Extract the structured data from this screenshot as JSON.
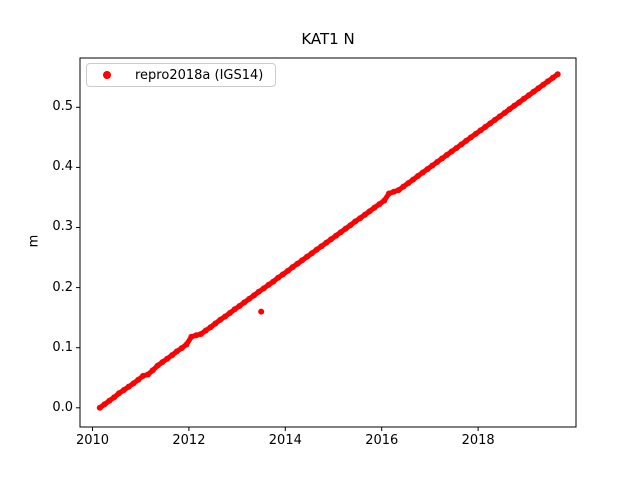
{
  "chart_data": {
    "type": "scatter",
    "title": "KAT1 N",
    "xlabel": "",
    "ylabel": "m",
    "legend_position": "upper left",
    "grid": false,
    "xlim": [
      2009.74,
      2020.03
    ],
    "ylim": [
      -0.032,
      0.582
    ],
    "xticks": [
      2010,
      2012,
      2014,
      2016,
      2018
    ],
    "xtick_labels": [
      "2010",
      "2012",
      "2014",
      "2016",
      "2018"
    ],
    "yticks": [
      0.0,
      0.1,
      0.2,
      0.3,
      0.4,
      0.5
    ],
    "ytick_labels": [
      "0.0",
      "0.1",
      "0.2",
      "0.3",
      "0.4",
      "0.5"
    ],
    "series": [
      {
        "name": "repro2018a (IGS14)",
        "color": "#ff0000",
        "marker": "point",
        "x": [
          2010.15,
          2010.25,
          2010.35,
          2010.45,
          2010.55,
          2010.65,
          2010.75,
          2010.85,
          2010.95,
          2011.05,
          2011.15,
          2011.25,
          2011.35,
          2011.45,
          2011.55,
          2011.65,
          2011.75,
          2011.85,
          2011.95,
          2012.05,
          2012.15,
          2012.25,
          2012.35,
          2012.45,
          2012.55,
          2012.65,
          2012.75,
          2012.85,
          2012.95,
          2013.05,
          2013.15,
          2013.25,
          2013.35,
          2013.45,
          2013.55,
          2013.65,
          2013.75,
          2013.85,
          2013.95,
          2014.05,
          2014.15,
          2014.25,
          2014.35,
          2014.45,
          2014.55,
          2014.65,
          2014.75,
          2014.85,
          2014.95,
          2015.05,
          2015.15,
          2015.25,
          2015.35,
          2015.45,
          2015.55,
          2015.65,
          2015.75,
          2015.85,
          2015.95,
          2016.05,
          2016.15,
          2016.25,
          2016.35,
          2016.45,
          2016.55,
          2016.65,
          2016.75,
          2016.85,
          2016.95,
          2017.05,
          2017.15,
          2017.25,
          2017.35,
          2017.45,
          2017.55,
          2017.65,
          2017.75,
          2017.85,
          2017.95,
          2018.05,
          2018.15,
          2018.25,
          2018.35,
          2018.45,
          2018.55,
          2018.65,
          2018.75,
          2018.85,
          2018.95,
          2019.05,
          2019.15,
          2019.25,
          2019.35,
          2019.45,
          2019.55,
          2019.65
        ],
        "y": [
          0.0,
          0.0058,
          0.0117,
          0.0175,
          0.024,
          0.0295,
          0.0351,
          0.0405,
          0.0467,
          0.053,
          0.0554,
          0.0623,
          0.0701,
          0.076,
          0.0815,
          0.0876,
          0.0938,
          0.0993,
          0.1052,
          0.118,
          0.1208,
          0.1227,
          0.1285,
          0.134,
          0.1402,
          0.1465,
          0.1519,
          0.1577,
          0.1638,
          0.1694,
          0.1753,
          0.1811,
          0.1869,
          0.193,
          0.1986,
          0.2045,
          0.21,
          0.2162,
          0.222,
          0.2278,
          0.234,
          0.2395,
          0.2454,
          0.2512,
          0.257,
          0.2632,
          0.2687,
          0.2746,
          0.2804,
          0.2863,
          0.2921,
          0.2979,
          0.3038,
          0.3099,
          0.3155,
          0.3213,
          0.3271,
          0.333,
          0.3388,
          0.3447,
          0.3565,
          0.3594,
          0.3622,
          0.368,
          0.3739,
          0.3797,
          0.3856,
          0.3914,
          0.3972,
          0.4031,
          0.4089,
          0.4148,
          0.4206,
          0.4265,
          0.4323,
          0.4381,
          0.444,
          0.4498,
          0.4557,
          0.4615,
          0.4673,
          0.4732,
          0.479,
          0.4849,
          0.4907,
          0.4966,
          0.5024,
          0.5082,
          0.5141,
          0.5199,
          0.5258,
          0.5316,
          0.5374,
          0.5433,
          0.5491,
          0.555
        ],
        "outliers": [
          {
            "x": 2013.5,
            "y": 0.16
          }
        ]
      }
    ]
  },
  "legend": {
    "label": "repro2018a (IGS14)"
  },
  "colors": {
    "data": "#ff0000",
    "axes": "#000000",
    "legend_border": "#cccccc",
    "background": "#ffffff"
  }
}
